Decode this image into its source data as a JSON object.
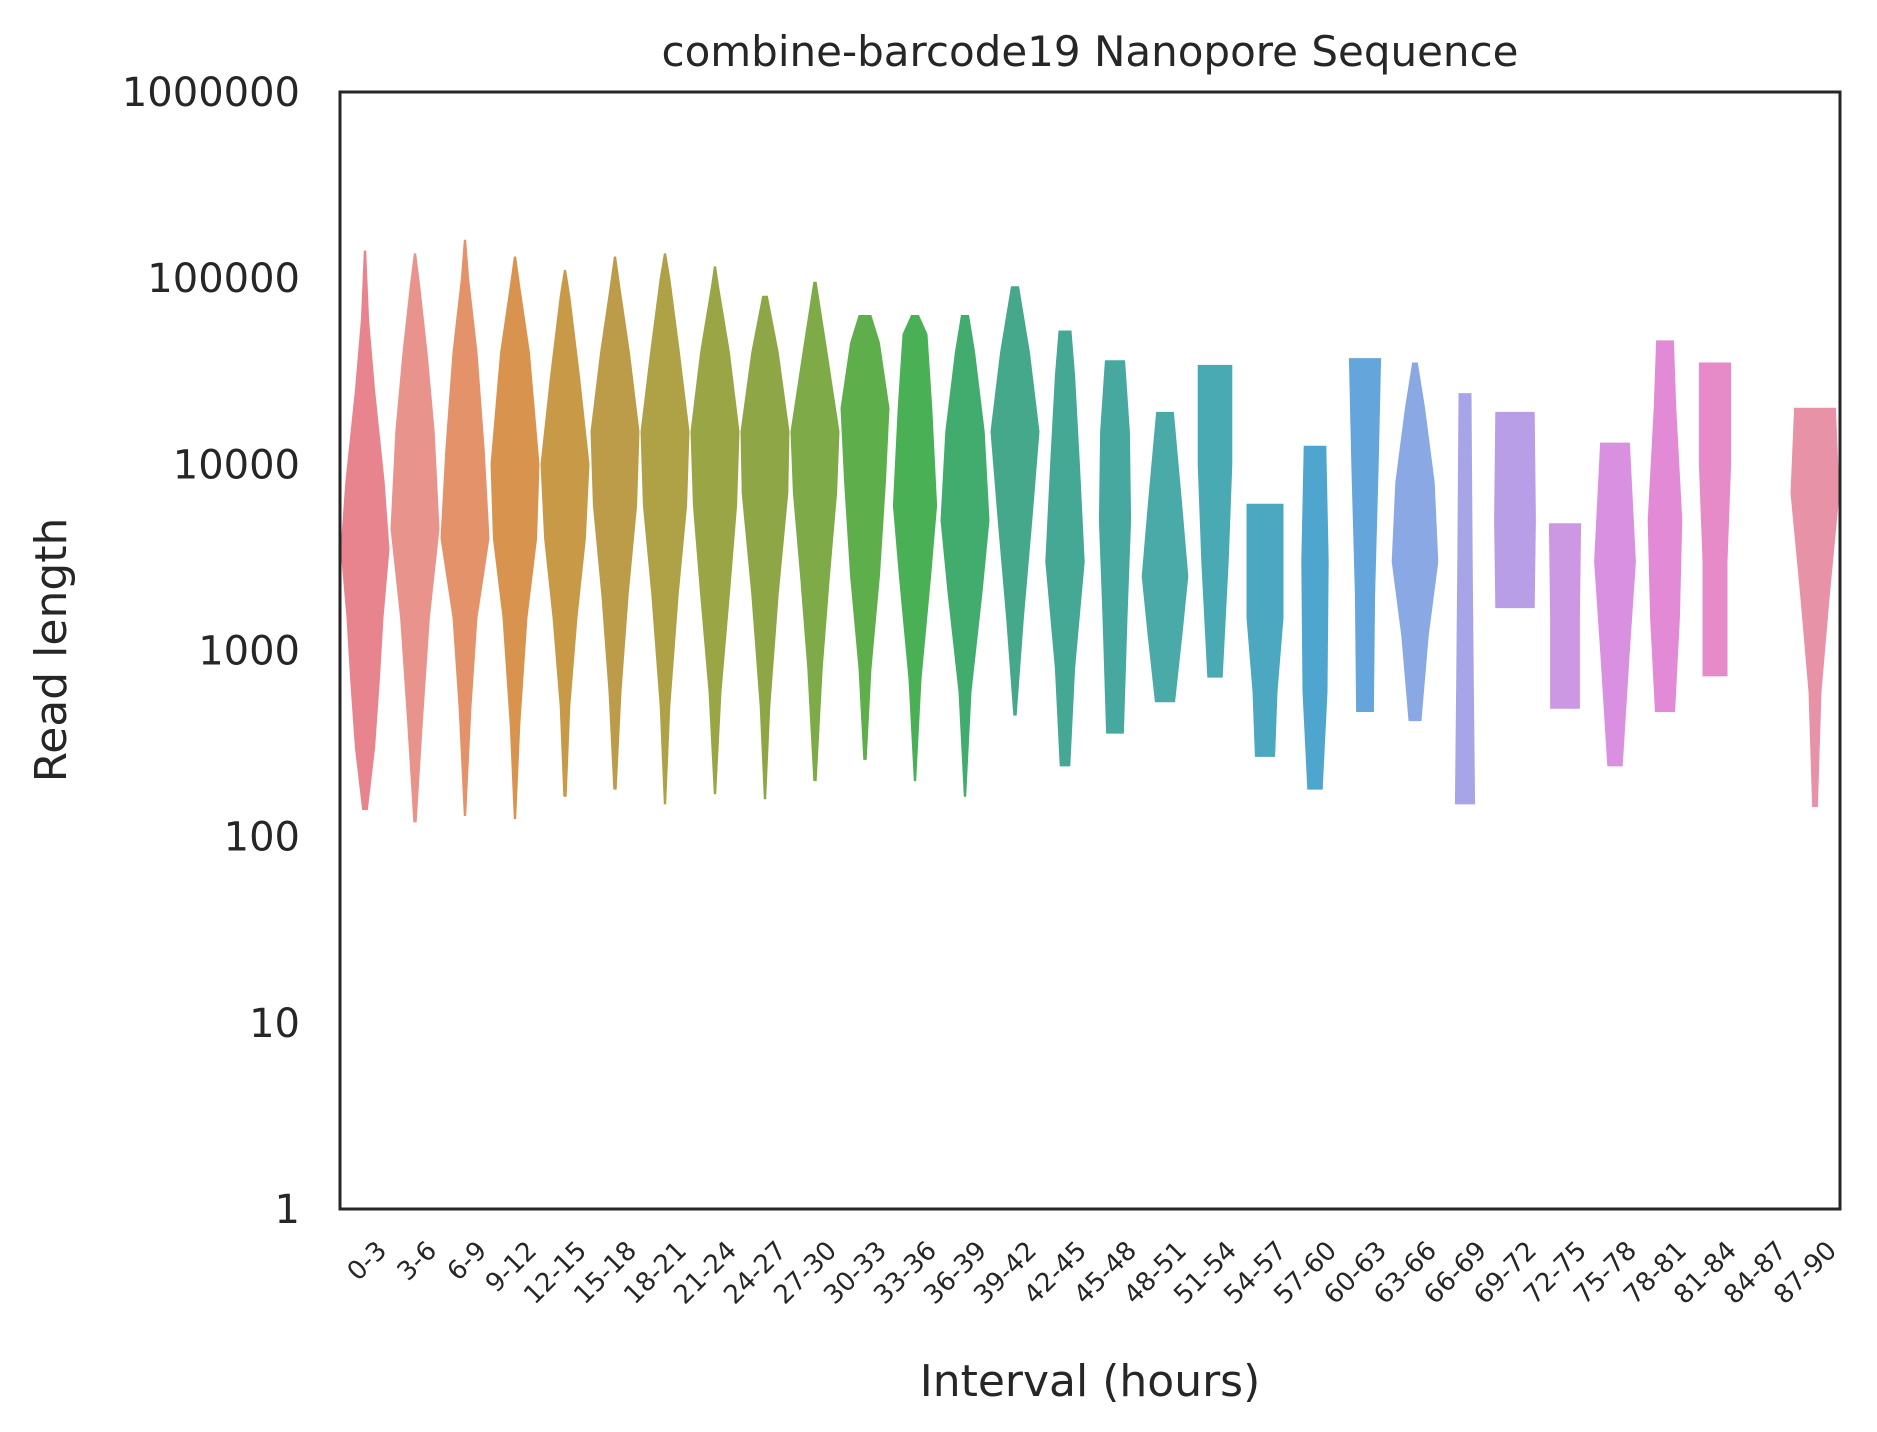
{
  "chart_data": {
    "type": "violin",
    "title": "combine-barcode19 Nanopore Sequence",
    "xlabel": "Interval (hours)",
    "ylabel": "Read length",
    "yscale": "log",
    "ylim": [
      1,
      1000000
    ],
    "yticks": [
      {
        "value": 1,
        "label": "1"
      },
      {
        "value": 10,
        "label": "10"
      },
      {
        "value": 100,
        "label": "100"
      },
      {
        "value": 1000,
        "label": "1000"
      },
      {
        "value": 10000,
        "label": "10000"
      },
      {
        "value": 100000,
        "label": "100000"
      },
      {
        "value": 1000000,
        "label": "1000000"
      }
    ],
    "grid": false,
    "categories": [
      "0-3",
      "3-6",
      "6-9",
      "9-12",
      "12-15",
      "15-18",
      "18-21",
      "21-24",
      "24-27",
      "27-30",
      "30-33",
      "33-36",
      "36-39",
      "39-42",
      "42-45",
      "45-48",
      "48-51",
      "51-54",
      "54-57",
      "57-60",
      "60-63",
      "63-66",
      "66-69",
      "69-72",
      "72-75",
      "75-78",
      "78-81",
      "81-84",
      "84-87",
      "87-90"
    ],
    "violins": [
      {
        "interval": "0-3",
        "color": "#e8848e",
        "profile": [
          [
            140,
            0.1
          ],
          [
            300,
            0.4
          ],
          [
            700,
            0.6
          ],
          [
            1500,
            0.75
          ],
          [
            3500,
            1.0
          ],
          [
            8000,
            0.8
          ],
          [
            25000,
            0.4
          ],
          [
            60000,
            0.15
          ],
          [
            140000,
            0.03
          ]
        ]
      },
      {
        "interval": "3-6",
        "color": "#e8948c",
        "profile": [
          [
            120,
            0.05
          ],
          [
            400,
            0.3
          ],
          [
            1500,
            0.6
          ],
          [
            4500,
            1.0
          ],
          [
            15000,
            0.8
          ],
          [
            40000,
            0.5
          ],
          [
            90000,
            0.2
          ],
          [
            135000,
            0.03
          ]
        ]
      },
      {
        "interval": "6-9",
        "color": "#e4926a",
        "profile": [
          [
            130,
            0.03
          ],
          [
            500,
            0.25
          ],
          [
            1500,
            0.5
          ],
          [
            4000,
            1.0
          ],
          [
            12000,
            0.8
          ],
          [
            40000,
            0.5
          ],
          [
            100000,
            0.15
          ],
          [
            160000,
            0.03
          ]
        ]
      },
      {
        "interval": "9-12",
        "color": "#d8944e",
        "profile": [
          [
            125,
            0.03
          ],
          [
            400,
            0.2
          ],
          [
            1500,
            0.5
          ],
          [
            4000,
            0.9
          ],
          [
            10000,
            1.0
          ],
          [
            40000,
            0.6
          ],
          [
            90000,
            0.2
          ],
          [
            130000,
            0.03
          ]
        ]
      },
      {
        "interval": "12-15",
        "color": "#c89a48",
        "profile": [
          [
            165,
            0.05
          ],
          [
            500,
            0.2
          ],
          [
            1500,
            0.5
          ],
          [
            4000,
            0.85
          ],
          [
            10000,
            1.0
          ],
          [
            30000,
            0.6
          ],
          [
            80000,
            0.2
          ],
          [
            110000,
            0.03
          ]
        ]
      },
      {
        "interval": "15-18",
        "color": "#bd9c49",
        "profile": [
          [
            180,
            0.05
          ],
          [
            600,
            0.25
          ],
          [
            2000,
            0.55
          ],
          [
            6000,
            0.9
          ],
          [
            15000,
            1.0
          ],
          [
            40000,
            0.6
          ],
          [
            90000,
            0.2
          ],
          [
            130000,
            0.03
          ]
        ]
      },
      {
        "interval": "18-21",
        "color": "#aea146",
        "profile": [
          [
            150,
            0.03
          ],
          [
            500,
            0.2
          ],
          [
            2000,
            0.55
          ],
          [
            6000,
            0.9
          ],
          [
            15000,
            1.0
          ],
          [
            40000,
            0.6
          ],
          [
            100000,
            0.2
          ],
          [
            135000,
            0.03
          ]
        ]
      },
      {
        "interval": "21-24",
        "color": "#9aa646",
        "profile": [
          [
            170,
            0.03
          ],
          [
            600,
            0.25
          ],
          [
            2000,
            0.6
          ],
          [
            6000,
            0.9
          ],
          [
            15000,
            1.0
          ],
          [
            40000,
            0.6
          ],
          [
            90000,
            0.15
          ],
          [
            115000,
            0.03
          ]
        ]
      },
      {
        "interval": "24-27",
        "color": "#8fa646",
        "profile": [
          [
            160,
            0.03
          ],
          [
            500,
            0.2
          ],
          [
            2000,
            0.55
          ],
          [
            7000,
            0.95
          ],
          [
            15000,
            1.0
          ],
          [
            40000,
            0.55
          ],
          [
            80000,
            0.1
          ]
        ]
      },
      {
        "interval": "27-30",
        "color": "#7eaa47",
        "profile": [
          [
            200,
            0.05
          ],
          [
            800,
            0.3
          ],
          [
            2500,
            0.6
          ],
          [
            7000,
            0.9
          ],
          [
            15000,
            1.0
          ],
          [
            40000,
            0.5
          ],
          [
            95000,
            0.05
          ]
        ]
      },
      {
        "interval": "30-33",
        "color": "#5eae4c",
        "profile": [
          [
            260,
            0.05
          ],
          [
            800,
            0.25
          ],
          [
            2500,
            0.6
          ],
          [
            8000,
            0.85
          ],
          [
            20000,
            1.0
          ],
          [
            45000,
            0.6
          ],
          [
            63000,
            0.25
          ]
        ]
      },
      {
        "interval": "33-36",
        "color": "#4ab056",
        "profile": [
          [
            200,
            0.03
          ],
          [
            700,
            0.25
          ],
          [
            2500,
            0.65
          ],
          [
            6000,
            0.9
          ],
          [
            20000,
            0.7
          ],
          [
            50000,
            0.5
          ],
          [
            63000,
            0.15
          ]
        ]
      },
      {
        "interval": "36-39",
        "color": "#42ab6e",
        "profile": [
          [
            165,
            0.03
          ],
          [
            600,
            0.25
          ],
          [
            2000,
            0.7
          ],
          [
            5000,
            1.0
          ],
          [
            15000,
            0.8
          ],
          [
            40000,
            0.4
          ],
          [
            63000,
            0.15
          ]
        ]
      },
      {
        "interval": "39-42",
        "color": "#45a88a",
        "profile": [
          [
            450,
            0.05
          ],
          [
            1500,
            0.35
          ],
          [
            5000,
            0.7
          ],
          [
            15000,
            1.0
          ],
          [
            40000,
            0.6
          ],
          [
            90000,
            0.15
          ]
        ]
      },
      {
        "interval": "42-45",
        "color": "#44a894",
        "profile": [
          [
            240,
            0.2
          ],
          [
            800,
            0.4
          ],
          [
            3000,
            0.8
          ],
          [
            10000,
            0.6
          ],
          [
            30000,
            0.4
          ],
          [
            52000,
            0.25
          ]
        ]
      },
      {
        "interval": "45-48",
        "color": "#47a8a0",
        "profile": [
          [
            360,
            0.35
          ],
          [
            1500,
            0.5
          ],
          [
            5000,
            0.65
          ],
          [
            15000,
            0.6
          ],
          [
            36000,
            0.4
          ]
        ]
      },
      {
        "interval": "48-51",
        "color": "#4aaaa8",
        "profile": [
          [
            530,
            0.4
          ],
          [
            1200,
            0.7
          ],
          [
            2500,
            0.95
          ],
          [
            6000,
            0.7
          ],
          [
            19000,
            0.35
          ]
        ]
      },
      {
        "interval": "51-54",
        "color": "#49aab4",
        "profile": [
          [
            720,
            0.3
          ],
          [
            3000,
            0.55
          ],
          [
            10000,
            0.7
          ],
          [
            34000,
            0.7
          ]
        ]
      },
      {
        "interval": "54-57",
        "color": "#4ba8c0",
        "profile": [
          [
            270,
            0.4
          ],
          [
            600,
            0.5
          ],
          [
            1500,
            0.75
          ],
          [
            6100,
            0.75
          ]
        ]
      },
      {
        "interval": "57-60",
        "color": "#4ea5cd",
        "profile": [
          [
            180,
            0.3
          ],
          [
            600,
            0.5
          ],
          [
            3000,
            0.55
          ],
          [
            12500,
            0.45
          ]
        ]
      },
      {
        "interval": "60-63",
        "color": "#64a6dc",
        "profile": [
          [
            470,
            0.35
          ],
          [
            2000,
            0.4
          ],
          [
            10000,
            0.55
          ],
          [
            37000,
            0.65
          ]
        ]
      },
      {
        "interval": "63-66",
        "color": "#8aa8e4",
        "profile": [
          [
            420,
            0.25
          ],
          [
            1200,
            0.55
          ],
          [
            3000,
            0.95
          ],
          [
            8000,
            0.8
          ],
          [
            20000,
            0.4
          ],
          [
            35000,
            0.1
          ]
        ]
      },
      {
        "interval": "66-69",
        "color": "#a8a4e8",
        "profile": [
          [
            150,
            0.4
          ],
          [
            600,
            0.35
          ],
          [
            3000,
            0.3
          ],
          [
            24000,
            0.25
          ]
        ]
      },
      {
        "interval": "69-72",
        "color": "#b89ee6",
        "profile": [
          [
            1700,
            0.8
          ],
          [
            5000,
            0.85
          ],
          [
            19000,
            0.8
          ]
        ]
      },
      {
        "interval": "72-75",
        "color": "#cc98e4",
        "profile": [
          [
            490,
            0.6
          ],
          [
            1500,
            0.6
          ],
          [
            4800,
            0.65
          ]
        ]
      },
      {
        "interval": "75-78",
        "color": "#d990e0",
        "profile": [
          [
            240,
            0.3
          ],
          [
            1000,
            0.6
          ],
          [
            3000,
            0.85
          ],
          [
            13000,
            0.6
          ]
        ]
      },
      {
        "interval": "78-81",
        "color": "#e28ad6",
        "profile": [
          [
            470,
            0.4
          ],
          [
            1500,
            0.6
          ],
          [
            5000,
            0.7
          ],
          [
            20000,
            0.45
          ],
          [
            46000,
            0.35
          ]
        ]
      },
      {
        "interval": "81-84",
        "color": "#e68ac8",
        "profile": [
          [
            730,
            0.5
          ],
          [
            3000,
            0.5
          ],
          [
            10000,
            0.65
          ],
          [
            35000,
            0.65
          ]
        ]
      },
      {
        "interval": "84-87",
        "color": "#e88cb8",
        "profile": []
      },
      {
        "interval": "87-90",
        "color": "#e892a8",
        "profile": [
          [
            145,
            0.1
          ],
          [
            600,
            0.25
          ],
          [
            2000,
            0.6
          ],
          [
            7000,
            1.0
          ],
          [
            20000,
            0.85
          ]
        ]
      }
    ]
  }
}
